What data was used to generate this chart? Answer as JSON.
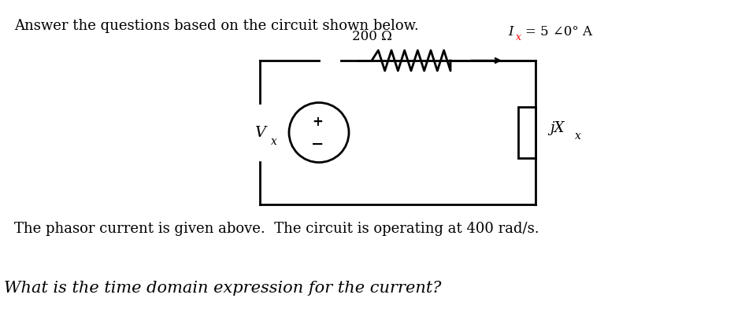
{
  "title_text": "Answer the questions based on the circuit shown below.",
  "body_text1": "The phasor current is given above.  The circuit is operating at 400 rad/s.",
  "body_text2": "What is the time domain expression for the current?",
  "bg_color": "#ffffff",
  "text_color": "#000000",
  "circuit_color": "#000000",
  "resistor_label": "200 Ω",
  "current_label_prefix": "I",
  "current_label_suffix": "= 5 ∠0° A",
  "current_subscript": "x",
  "vx_label": "V",
  "vx_subscript": "x",
  "jxx_label": "jX",
  "jxx_subscript": "x",
  "plus_label": "+",
  "minus_label": "−",
  "fig_width": 9.46,
  "fig_height": 4.12,
  "dpi": 100
}
